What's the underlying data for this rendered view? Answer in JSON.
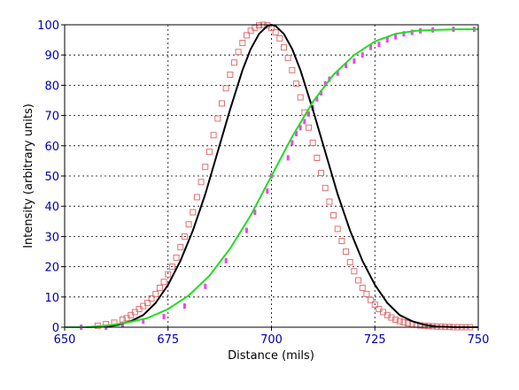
{
  "chart_data": {
    "type": "scatter",
    "title": "",
    "xlabel": "Distance (mils)",
    "ylabel": "Intensity (arbitrary units)",
    "xlim": [
      650,
      750
    ],
    "ylim": [
      0,
      100
    ],
    "x_ticks": [
      650,
      675,
      700,
      725,
      750
    ],
    "y_ticks": [
      0,
      10,
      20,
      30,
      40,
      50,
      60,
      70,
      80,
      90,
      100
    ],
    "x_tick_labels": [
      "650",
      "675",
      "700",
      "725",
      "750"
    ],
    "y_tick_labels": [
      "0",
      "10",
      "20",
      "30",
      "40",
      "50",
      "60",
      "70",
      "80",
      "90",
      "100"
    ],
    "grid": true,
    "legend": "none",
    "series": [
      {
        "kind": "scatter",
        "marker": "square-open",
        "color": "#e07070",
        "x": [
          658,
          660,
          662,
          664,
          665,
          666,
          667,
          668,
          669,
          670,
          671,
          672,
          673,
          674,
          675,
          676,
          677,
          678,
          679,
          680,
          681,
          682,
          683,
          684,
          685,
          686,
          687,
          688,
          689,
          690,
          691,
          692,
          693,
          694,
          695,
          696,
          697,
          698,
          699,
          700,
          701,
          702,
          703,
          704,
          705,
          706,
          707,
          708,
          709,
          710,
          711,
          712,
          713,
          714,
          715,
          716,
          717,
          718,
          719,
          720,
          721,
          722,
          723,
          724,
          725,
          726,
          727,
          728,
          729,
          730,
          731,
          732,
          733,
          734,
          735,
          736,
          737,
          738,
          739,
          740,
          741,
          742,
          743,
          744,
          745,
          746,
          747,
          748
        ],
        "y": [
          0.5,
          1,
          1.5,
          2.5,
          3,
          4,
          5,
          6,
          7,
          8,
          9.5,
          11,
          13,
          15,
          17.5,
          20,
          23,
          26.5,
          30,
          34,
          38,
          43,
          48,
          53,
          58,
          63.5,
          69,
          74,
          79,
          83.5,
          87.5,
          91,
          94,
          96.5,
          98,
          99,
          99.8,
          100,
          99.8,
          99,
          97.5,
          95.5,
          92.5,
          89,
          85,
          80.5,
          76,
          71,
          66,
          61,
          56,
          51,
          46,
          41.5,
          37,
          32.5,
          28.5,
          25,
          21.5,
          18.5,
          15.5,
          13,
          11,
          9,
          7.5,
          6,
          5,
          4,
          3.2,
          2.5,
          2,
          1.6,
          1.3,
          1,
          0.8,
          0.6,
          0.5,
          0.4,
          0.3,
          0.2,
          0.2,
          0.1,
          0.1,
          0,
          0,
          0,
          0,
          0
        ]
      },
      {
        "kind": "scatter",
        "marker": "bar-short",
        "color": "#ee44ee",
        "x": [
          654,
          660,
          664,
          669,
          674,
          679,
          684,
          689,
          694,
          696,
          699,
          700,
          704,
          705,
          706,
          707,
          708,
          709,
          710,
          711,
          712,
          713,
          714,
          716,
          718,
          720,
          722,
          724,
          726,
          728,
          730,
          732,
          734,
          736,
          739,
          744,
          749
        ],
        "y": [
          0,
          0,
          1,
          2,
          3.5,
          7,
          13.5,
          22,
          32,
          38,
          45,
          50,
          56,
          61,
          64,
          66,
          68,
          70.5,
          72.5,
          75.5,
          77.5,
          80.5,
          82,
          84,
          86.5,
          88,
          90,
          92.5,
          93.5,
          95,
          96,
          97,
          97.5,
          98,
          98.3,
          98.5,
          98.5
        ]
      },
      {
        "kind": "line",
        "color": "#000000",
        "x": [
          650,
          655,
          660,
          663,
          666,
          669,
          672,
          675,
          678,
          681,
          684,
          687,
          690,
          693,
          695,
          697,
          699,
          700,
          701,
          703,
          705,
          707,
          710,
          713,
          716,
          719,
          722,
          725,
          728,
          731,
          734,
          737,
          740,
          745,
          750
        ],
        "y": [
          0,
          0,
          0.2,
          0.8,
          2,
          4,
          8,
          14,
          22,
          32,
          44,
          58,
          72,
          85,
          92,
          97,
          99.6,
          100,
          99.6,
          97,
          92,
          85,
          72,
          58,
          44,
          32,
          22,
          14,
          8,
          4,
          2,
          0.8,
          0.2,
          0,
          0
        ]
      },
      {
        "kind": "line",
        "color": "#22dd22",
        "x": [
          650,
          655,
          660,
          665,
          670,
          675,
          680,
          685,
          690,
          695,
          700,
          705,
          710,
          715,
          720,
          725,
          730,
          735,
          740,
          745,
          750
        ],
        "y": [
          0,
          0,
          0.5,
          1.5,
          3,
          6,
          10.5,
          17,
          26,
          37,
          50,
          63,
          74.5,
          83.5,
          90,
          94.5,
          97,
          98,
          98.3,
          98.5,
          98.5
        ]
      }
    ]
  }
}
